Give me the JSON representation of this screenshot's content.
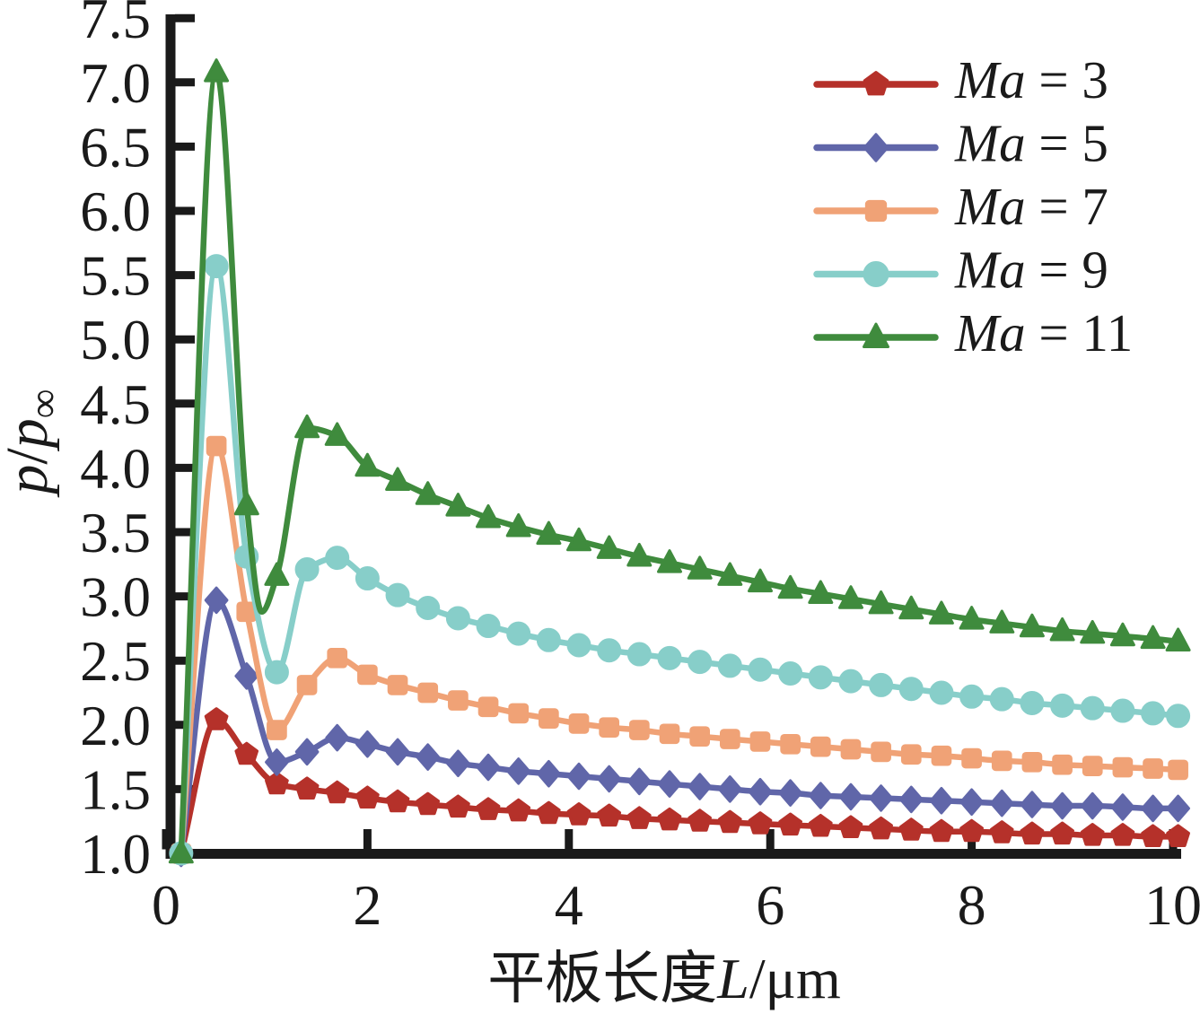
{
  "figure": {
    "background": "#ffffff",
    "axis_color": "#1a1a1a",
    "text_color": "#1a1a1a"
  },
  "chart_data": {
    "type": "line",
    "title": "",
    "xlabel": "平板长度L/μm",
    "xlabel_parts": {
      "cjk": "平板长度",
      "var": "L",
      "unit": "/μm"
    },
    "ylabel": "p/p∞",
    "ylabel_parts": {
      "num": "p",
      "slash": "/",
      "den": "p",
      "sub": "∞"
    },
    "xlim": [
      0,
      10
    ],
    "ylim": [
      1.0,
      7.5
    ],
    "grid": false,
    "legend_position": "upper-right",
    "x_tick_values": [
      0,
      2,
      4,
      6,
      8,
      10
    ],
    "x_tick_labels": [
      "0",
      "2",
      "4",
      "6",
      "8",
      "10"
    ],
    "y_tick_values": [
      1.0,
      1.5,
      2.0,
      2.5,
      3.0,
      3.5,
      4.0,
      4.5,
      5.0,
      5.5,
      6.0,
      6.5,
      7.0,
      7.5
    ],
    "y_tick_labels": [
      "1.0",
      "1.5",
      "2.0",
      "2.5",
      "3.0",
      "3.5",
      "4.0",
      "4.5",
      "5.0",
      "5.5",
      "6.0",
      "6.5",
      "7.0",
      "7.5"
    ],
    "x": [
      0.15,
      0.5,
      0.8,
      1.1,
      1.4,
      1.7,
      2.0,
      2.3,
      2.6,
      2.9,
      3.2,
      3.5,
      3.8,
      4.1,
      4.4,
      4.7,
      5.0,
      5.3,
      5.6,
      5.9,
      6.2,
      6.5,
      6.8,
      7.1,
      7.4,
      7.7,
      8.0,
      8.3,
      8.6,
      8.9,
      9.2,
      9.5,
      9.8,
      10.05
    ],
    "series": [
      {
        "name": "Ma = 3",
        "name_var": "Ma",
        "name_value": "3",
        "color": "#B5312A",
        "marker": "pentagon",
        "values": [
          1.0,
          2.04,
          1.77,
          1.54,
          1.5,
          1.47,
          1.43,
          1.4,
          1.38,
          1.36,
          1.34,
          1.33,
          1.31,
          1.3,
          1.29,
          1.27,
          1.26,
          1.25,
          1.24,
          1.23,
          1.22,
          1.21,
          1.2,
          1.19,
          1.18,
          1.17,
          1.17,
          1.16,
          1.15,
          1.15,
          1.14,
          1.14,
          1.13,
          1.13
        ]
      },
      {
        "name": "Ma = 5",
        "name_var": "Ma",
        "name_value": "5",
        "color": "#6066A9",
        "marker": "diamond",
        "values": [
          1.0,
          2.97,
          2.38,
          1.71,
          1.79,
          1.9,
          1.85,
          1.79,
          1.75,
          1.7,
          1.67,
          1.64,
          1.62,
          1.6,
          1.58,
          1.56,
          1.54,
          1.52,
          1.5,
          1.48,
          1.47,
          1.45,
          1.44,
          1.43,
          1.42,
          1.41,
          1.4,
          1.39,
          1.38,
          1.37,
          1.37,
          1.36,
          1.35,
          1.35
        ]
      },
      {
        "name": "Ma = 7",
        "name_var": "Ma",
        "name_value": "7",
        "color": "#F0A276",
        "marker": "square",
        "values": [
          1.0,
          4.17,
          2.88,
          1.96,
          2.31,
          2.52,
          2.39,
          2.31,
          2.25,
          2.19,
          2.14,
          2.09,
          2.05,
          2.01,
          1.98,
          1.96,
          1.93,
          1.91,
          1.89,
          1.87,
          1.85,
          1.83,
          1.81,
          1.79,
          1.77,
          1.76,
          1.74,
          1.72,
          1.71,
          1.69,
          1.68,
          1.67,
          1.66,
          1.65
        ]
      },
      {
        "name": "Ma = 9",
        "name_var": "Ma",
        "name_value": "9",
        "color": "#87CEC9",
        "marker": "circle",
        "values": [
          1.0,
          5.57,
          3.31,
          2.41,
          3.21,
          3.3,
          3.14,
          3.01,
          2.91,
          2.83,
          2.77,
          2.71,
          2.66,
          2.62,
          2.58,
          2.55,
          2.52,
          2.49,
          2.46,
          2.43,
          2.4,
          2.37,
          2.34,
          2.31,
          2.28,
          2.25,
          2.22,
          2.2,
          2.17,
          2.15,
          2.13,
          2.11,
          2.09,
          2.07
        ]
      },
      {
        "name": "Ma = 11",
        "name_var": "Ma",
        "name_value": "11",
        "color": "#3F8B3D",
        "marker": "triangle",
        "line_extra": [
          [
            0.95,
            2.88
          ]
        ],
        "values": [
          1.0,
          7.08,
          3.71,
          3.16,
          4.31,
          4.25,
          4.01,
          3.9,
          3.79,
          3.7,
          3.61,
          3.54,
          3.48,
          3.43,
          3.37,
          3.31,
          3.26,
          3.21,
          3.16,
          3.11,
          3.06,
          3.02,
          2.98,
          2.94,
          2.9,
          2.86,
          2.82,
          2.79,
          2.76,
          2.73,
          2.71,
          2.69,
          2.67,
          2.65
        ]
      }
    ]
  }
}
